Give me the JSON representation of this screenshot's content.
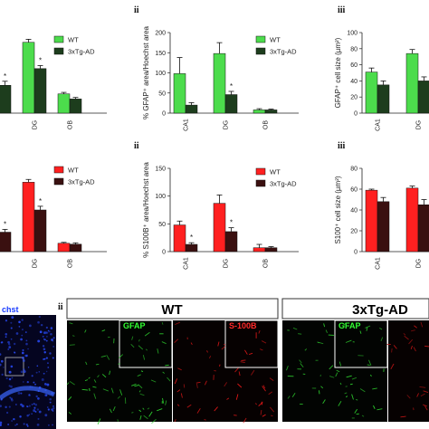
{
  "chart_data": [
    {
      "id": "c1",
      "type": "bar",
      "panel": "",
      "categories": [
        "",
        "DG",
        "OB"
      ],
      "series": [
        {
          "name": "WT",
          "values": [
            null,
            140,
            38
          ],
          "errors": [
            null,
            6,
            3
          ]
        },
        {
          "name": "3xTg-AD",
          "values": [
            55,
            88,
            28
          ],
          "errors": [
            8,
            6,
            3
          ]
        }
      ],
      "ylim": [
        0,
        170
      ],
      "yticks": [],
      "ylabel": "",
      "star": [
        1,
        1,
        0
      ],
      "colors": {
        "WT": "#4cdc4c",
        "3xTg-AD": "#1d3d1d"
      }
    },
    {
      "id": "c2",
      "type": "bar",
      "panel": "ii",
      "categories": [
        "CA1",
        "DG",
        "OB"
      ],
      "series": [
        {
          "name": "WT",
          "values": [
            98,
            148,
            8
          ],
          "errors": [
            40,
            27,
            3
          ]
        },
        {
          "name": "3xTg-AD",
          "values": [
            20,
            46,
            8
          ],
          "errors": [
            6,
            8,
            2
          ]
        }
      ],
      "ylim": [
        0,
        200
      ],
      "yticks": [
        0,
        50,
        100,
        150,
        200
      ],
      "ylabel": "% GFAP⁺ area/Hoechst area",
      "star": [
        0,
        1,
        0
      ],
      "colors": {
        "WT": "#4cdc4c",
        "3xTg-AD": "#1d3d1d"
      }
    },
    {
      "id": "c3",
      "type": "bar",
      "panel": "iii",
      "categories": [
        "CA1",
        "DG"
      ],
      "series": [
        {
          "name": "WT",
          "values": [
            51,
            74
          ],
          "errors": [
            5,
            5
          ]
        },
        {
          "name": "3xTg-AD",
          "values": [
            35,
            40
          ],
          "errors": [
            5,
            5
          ]
        }
      ],
      "ylim": [
        0,
        100
      ],
      "yticks": [
        0,
        20,
        40,
        60,
        80,
        100
      ],
      "ylabel": "GFAP⁺ cell size (µm²)",
      "star": [
        0,
        0
      ],
      "colors": {
        "WT": "#4cdc4c",
        "3xTg-AD": "#1d3d1d"
      }
    },
    {
      "id": "c4",
      "type": "bar",
      "panel": "",
      "categories": [
        "",
        "DG",
        "OB"
      ],
      "series": [
        {
          "name": "WT",
          "values": [
            null,
            150,
            18
          ],
          "errors": [
            null,
            6,
            2
          ]
        },
        {
          "name": "3xTg-AD",
          "values": [
            42,
            90,
            16
          ],
          "errors": [
            6,
            8,
            3
          ]
        }
      ],
      "ylim": [
        0,
        180
      ],
      "yticks": [],
      "ylabel": "",
      "star": [
        1,
        1,
        0
      ],
      "colors": {
        "WT": "#ff2020",
        "3xTg-AD": "#3a1010"
      }
    },
    {
      "id": "c5",
      "type": "bar",
      "panel": "ii",
      "categories": [
        "CA1",
        "DG",
        "OB"
      ],
      "series": [
        {
          "name": "WT",
          "values": [
            48,
            87,
            7
          ],
          "errors": [
            7,
            15,
            6
          ]
        },
        {
          "name": "3xTg-AD",
          "values": [
            13,
            36,
            7
          ],
          "errors": [
            3,
            7,
            2
          ]
        }
      ],
      "ylim": [
        0,
        150
      ],
      "yticks": [
        0,
        50,
        100,
        150
      ],
      "ylabel": "% S100B⁺ area/Hoechst area",
      "star": [
        1,
        1,
        0
      ],
      "colors": {
        "WT": "#ff2020",
        "3xTg-AD": "#3a1010"
      }
    },
    {
      "id": "c6",
      "type": "bar",
      "panel": "iii",
      "categories": [
        "CA1",
        "DG"
      ],
      "series": [
        {
          "name": "WT",
          "values": [
            59,
            61
          ],
          "errors": [
            1,
            2
          ]
        },
        {
          "name": "3xTg-AD",
          "values": [
            48,
            45
          ],
          "errors": [
            4,
            5
          ]
        }
      ],
      "ylim": [
        0,
        80
      ],
      "yticks": [
        0,
        20,
        40,
        60,
        80
      ],
      "ylabel": "S100⁺ cell size (µm²)",
      "star": [
        0,
        0
      ],
      "colors": {
        "WT": "#ff2020",
        "3xTg-AD": "#3a1010"
      }
    }
  ],
  "star_symbol": "*",
  "micrographs": {
    "left_caption": "chst",
    "panel_label": "ii",
    "wt_heading": "WT",
    "tg_heading": "3xTg-AD",
    "inset_gfap": "GFAP",
    "inset_s100b": "S-100B",
    "inset_gfap_tg": "GFAP"
  }
}
